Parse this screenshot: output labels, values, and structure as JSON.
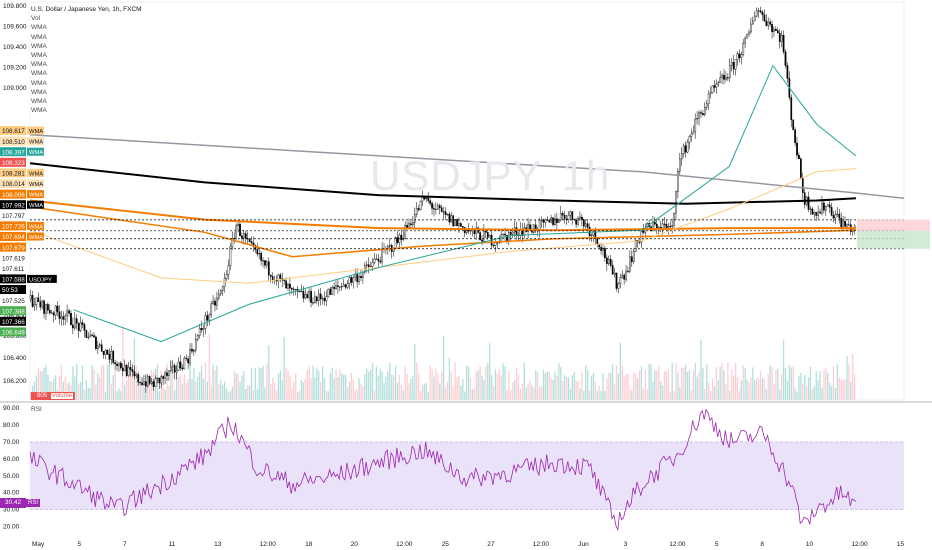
{
  "legend": {
    "title": "U.S. Dollar / Japanese Yen, 1h, FXCM",
    "vol": "Vol",
    "wma_items": [
      "WMA",
      "WMA",
      "WMA",
      "WMA",
      "WMA",
      "WMA",
      "WMA",
      "WMA",
      "WMA",
      "WMA"
    ]
  },
  "watermark": "USDJPY, 1h",
  "volume_tag": {
    "value": "805",
    "label": "Volume"
  },
  "rsi_legend": "RSI",
  "rsi_tag": {
    "value": "30.42",
    "label": "RSI"
  },
  "colors": {
    "up": "#26a69a",
    "down": "#ef5350",
    "rsi": "#9c27b0",
    "band": "#e1d5f5",
    "orange": "#f57c00",
    "black": "#000000",
    "grey": "#9598a1",
    "teal": "#26a69a"
  },
  "chart_data": [
    {
      "type": "line",
      "title": "U.S. Dollar / Japanese Yen, 1h, FXCM",
      "series_name": "USDJPY",
      "x_tick_labels": [
        "May",
        "5",
        "7",
        "11",
        "13",
        "12:00",
        "18",
        "20",
        "12:00",
        "25",
        "27",
        "12:00",
        "Jun",
        "3",
        "12:00",
        "5",
        "8",
        "10",
        "12:00",
        "15"
      ],
      "y_tick_labels": [
        "109.800",
        "109.600",
        "109.400",
        "109.200",
        "109.000",
        "106.800",
        "106.600",
        "106.400",
        "106.200"
      ],
      "ylim": [
        106.1,
        109.85
      ],
      "price_path": [
        [
          0,
          107.05
        ],
        [
          0.02,
          106.95
        ],
        [
          0.04,
          106.9
        ],
        [
          0.06,
          106.75
        ],
        [
          0.08,
          106.6
        ],
        [
          0.1,
          106.45
        ],
        [
          0.12,
          106.3
        ],
        [
          0.14,
          106.25
        ],
        [
          0.16,
          106.35
        ],
        [
          0.18,
          106.5
        ],
        [
          0.2,
          106.85
        ],
        [
          0.22,
          107.15
        ],
        [
          0.235,
          107.75
        ],
        [
          0.25,
          107.55
        ],
        [
          0.27,
          107.35
        ],
        [
          0.3,
          107.1
        ],
        [
          0.33,
          107.05
        ],
        [
          0.36,
          107.2
        ],
        [
          0.38,
          107.3
        ],
        [
          0.4,
          107.45
        ],
        [
          0.42,
          107.6
        ],
        [
          0.44,
          107.85
        ],
        [
          0.45,
          108.0
        ],
        [
          0.47,
          107.85
        ],
        [
          0.5,
          107.7
        ],
        [
          0.53,
          107.6
        ],
        [
          0.56,
          107.7
        ],
        [
          0.59,
          107.75
        ],
        [
          0.61,
          107.85
        ],
        [
          0.63,
          107.8
        ],
        [
          0.65,
          107.6
        ],
        [
          0.67,
          107.2
        ],
        [
          0.68,
          107.3
        ],
        [
          0.7,
          107.7
        ],
        [
          0.72,
          107.75
        ],
        [
          0.735,
          107.7
        ],
        [
          0.74,
          108.3
        ],
        [
          0.76,
          108.7
        ],
        [
          0.78,
          109.0
        ],
        [
          0.8,
          109.2
        ],
        [
          0.82,
          109.5
        ],
        [
          0.83,
          109.8
        ],
        [
          0.84,
          109.7
        ],
        [
          0.86,
          109.5
        ],
        [
          0.87,
          108.8
        ],
        [
          0.885,
          108.0
        ],
        [
          0.9,
          107.85
        ],
        [
          0.91,
          107.95
        ],
        [
          0.93,
          107.75
        ],
        [
          0.945,
          107.7
        ]
      ],
      "price_labels": [
        {
          "value": "108.617",
          "tag": "WMA",
          "color": "#ffcc80",
          "text": "#131722"
        },
        {
          "value": "108.510",
          "tag": "WMA",
          "color": "#ffe0b2",
          "text": "#131722"
        },
        {
          "value": "108.397",
          "tag": "WMA",
          "color": "#26a69a",
          "text": "#ffffff"
        },
        {
          "value": "108.323",
          "tag": "",
          "color": "#ef5350",
          "text": "#ffffff"
        },
        {
          "value": "108.281",
          "tag": "WMA",
          "color": "#ffcc80",
          "text": "#131722"
        },
        {
          "value": "108.014",
          "tag": "WMA",
          "color": "#ffe0b2",
          "text": "#131722"
        },
        {
          "value": "108.006",
          "tag": "WMA",
          "color": "#f57c00",
          "text": "#ffffff"
        },
        {
          "value": "107.992",
          "tag": "WMA",
          "color": "#000000",
          "text": "#ffffff"
        },
        {
          "value": "107.797",
          "tag": "",
          "color": "#ffffff",
          "text": "#131722"
        },
        {
          "value": "107.726",
          "tag": "WMA",
          "color": "#f57c00",
          "text": "#ffffff"
        },
        {
          "value": "107.694",
          "tag": "WMA",
          "color": "#f57c00",
          "text": "#ffffff"
        },
        {
          "value": "107.679",
          "tag": "",
          "color": "#f57c00",
          "text": "#ffffff"
        },
        {
          "value": "107.619",
          "tag": "",
          "color": "#ffffff",
          "text": "#131722"
        },
        {
          "value": "107.611",
          "tag": "",
          "color": "#ffffff",
          "text": "#131722"
        },
        {
          "value": "107.588",
          "tag": "USDJPY",
          "color": "#000000",
          "text": "#ffffff"
        },
        {
          "value": "50:53",
          "tag": "",
          "color": "#000000",
          "text": "#ffffff"
        },
        {
          "value": "107.525",
          "tag": "",
          "color": "#ffffff",
          "text": "#131722"
        },
        {
          "value": "107.388",
          "tag": "",
          "color": "#4caf50",
          "text": "#ffffff"
        },
        {
          "value": "107.366",
          "tag": "",
          "color": "#000000",
          "text": "#ffffff"
        },
        {
          "value": "106.649",
          "tag": "",
          "color": "#4caf50",
          "text": "#ffffff"
        }
      ],
      "rsi": {
        "y_tick_labels": [
          "90.00",
          "80.00",
          "70.00",
          "60.00",
          "50.00",
          "40.00",
          "30.00",
          "20.00"
        ],
        "ylim": [
          15,
          93
        ],
        "band": [
          30,
          70
        ],
        "value": "30.42"
      }
    }
  ]
}
